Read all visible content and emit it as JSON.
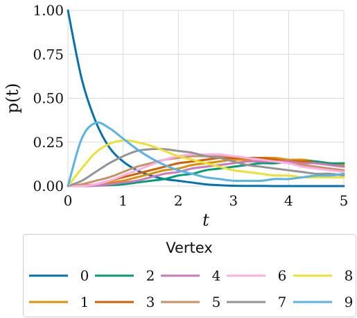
{
  "chart_data": {
    "type": "line",
    "xlabel": "t",
    "ylabel": "p(t)",
    "xlim": [
      0,
      5
    ],
    "ylim": [
      0,
      1
    ],
    "xticks": [
      "0",
      "1",
      "2",
      "3",
      "4",
      "5"
    ],
    "yticks": [
      "0.00",
      "0.25",
      "0.50",
      "0.75",
      "1.00"
    ],
    "grid": true,
    "legend_title": "Vertex",
    "legend_position": "bottom",
    "x": [
      0,
      0.25,
      0.5,
      0.75,
      1,
      1.25,
      1.5,
      1.75,
      2,
      2.25,
      2.5,
      2.75,
      3,
      3.25,
      3.5,
      3.75,
      4,
      4.25,
      4.5,
      4.75,
      5
    ],
    "series": [
      {
        "name": "0",
        "color": "#0173b2",
        "values": [
          1.0,
          0.61,
          0.37,
          0.22,
          0.14,
          0.09,
          0.06,
          0.04,
          0.03,
          0.02,
          0.01,
          0.005,
          0.002,
          0.001,
          0.001,
          0.0,
          0.0,
          0.0,
          0.0,
          0.0,
          0.0
        ]
      },
      {
        "name": "1",
        "color": "#de8f05",
        "values": [
          0.0,
          0.002,
          0.007,
          0.02,
          0.03,
          0.05,
          0.07,
          0.09,
          0.1,
          0.12,
          0.13,
          0.14,
          0.15,
          0.15,
          0.16,
          0.16,
          0.15,
          0.15,
          0.14,
          0.13,
          0.12
        ]
      },
      {
        "name": "2",
        "color": "#029e73",
        "values": [
          0.0,
          0.0,
          0.002,
          0.005,
          0.01,
          0.02,
          0.03,
          0.04,
          0.06,
          0.07,
          0.09,
          0.1,
          0.11,
          0.12,
          0.13,
          0.13,
          0.14,
          0.14,
          0.14,
          0.13,
          0.13
        ]
      },
      {
        "name": "3",
        "color": "#d55e00",
        "values": [
          0.0,
          0.003,
          0.01,
          0.03,
          0.05,
          0.07,
          0.09,
          0.11,
          0.13,
          0.14,
          0.15,
          0.16,
          0.16,
          0.16,
          0.16,
          0.15,
          0.14,
          0.14,
          0.13,
          0.12,
          0.11
        ]
      },
      {
        "name": "4",
        "color": "#cc78bc",
        "values": [
          0.0,
          0.0,
          0.002,
          0.01,
          0.02,
          0.03,
          0.05,
          0.07,
          0.08,
          0.1,
          0.11,
          0.12,
          0.13,
          0.14,
          0.14,
          0.14,
          0.14,
          0.13,
          0.13,
          0.12,
          0.11
        ]
      },
      {
        "name": "5",
        "color": "#ca9161",
        "values": [
          0.0,
          0.01,
          0.03,
          0.05,
          0.08,
          0.11,
          0.13,
          0.15,
          0.16,
          0.17,
          0.17,
          0.17,
          0.17,
          0.16,
          0.15,
          0.14,
          0.13,
          0.12,
          0.11,
          0.1,
          0.09
        ]
      },
      {
        "name": "6",
        "color": "#fbafe4",
        "values": [
          0.0,
          0.0,
          0.01,
          0.03,
          0.06,
          0.09,
          0.12,
          0.15,
          0.17,
          0.18,
          0.18,
          0.18,
          0.17,
          0.16,
          0.15,
          0.14,
          0.13,
          0.11,
          0.1,
          0.09,
          0.08
        ]
      },
      {
        "name": "7",
        "color": "#949494",
        "values": [
          0.0,
          0.03,
          0.08,
          0.13,
          0.17,
          0.2,
          0.21,
          0.21,
          0.2,
          0.19,
          0.17,
          0.16,
          0.14,
          0.12,
          0.11,
          0.1,
          0.09,
          0.08,
          0.07,
          0.07,
          0.06
        ]
      },
      {
        "name": "8",
        "color": "#ece133",
        "values": [
          0.0,
          0.1,
          0.19,
          0.24,
          0.26,
          0.25,
          0.23,
          0.2,
          0.17,
          0.15,
          0.13,
          0.11,
          0.09,
          0.08,
          0.07,
          0.06,
          0.06,
          0.05,
          0.05,
          0.05,
          0.05
        ]
      },
      {
        "name": "9",
        "color": "#56b4e9",
        "values": [
          0.0,
          0.27,
          0.36,
          0.33,
          0.27,
          0.21,
          0.16,
          0.12,
          0.09,
          0.07,
          0.05,
          0.04,
          0.03,
          0.03,
          0.03,
          0.04,
          0.04,
          0.05,
          0.06,
          0.06,
          0.07
        ]
      }
    ]
  }
}
